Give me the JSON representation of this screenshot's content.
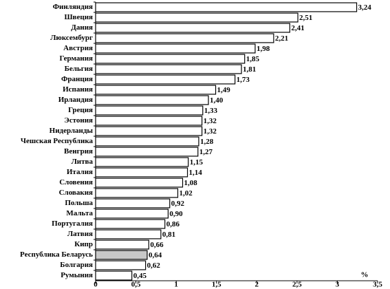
{
  "chart_data": {
    "type": "hbar",
    "categories": [
      "Финляндия",
      "Швеция",
      "Дания",
      "Люксембург",
      "Австрия",
      "Германия",
      "Бельгия",
      "Франция",
      "Испания",
      "Ирландия",
      "Греция",
      "Эстония",
      "Нидерланды",
      "Чешская Республика",
      "Венгрия",
      "Литва",
      "Италия",
      "Словения",
      "Словакия",
      "Польша",
      "Мальта",
      "Португалия",
      "Латвия",
      "Кипр",
      "Республика Беларусь",
      "Болгария",
      "Румыния"
    ],
    "values": [
      3.24,
      2.51,
      2.41,
      2.21,
      1.98,
      1.85,
      1.81,
      1.73,
      1.49,
      1.4,
      1.33,
      1.32,
      1.32,
      1.28,
      1.27,
      1.15,
      1.14,
      1.08,
      1.02,
      0.92,
      0.9,
      0.86,
      0.81,
      0.66,
      0.64,
      0.62,
      0.45
    ],
    "value_labels": [
      "3,24",
      "2,51",
      "2,41",
      "2,21",
      "1,98",
      "1,85",
      "1,81",
      "1,73",
      "1,49",
      "1,40",
      "1,33",
      "1,32",
      "1,32",
      "1,28",
      "1,27",
      "1,15",
      "1,14",
      "1,08",
      "1,02",
      "0,92",
      "0,90",
      "0,86",
      "0,81",
      "0,66",
      "0,64",
      "0,62",
      "0,45"
    ],
    "colors": [
      "#ffffff",
      "#ffffff",
      "#ffffff",
      "#ffffff",
      "#ffffff",
      "#ffffff",
      "#ffffff",
      "#ffffff",
      "#ffffff",
      "#ffffff",
      "#ffffff",
      "#ffffff",
      "#ffffff",
      "#ffffff",
      "#ffffff",
      "#ffffff",
      "#ffffff",
      "#ffffff",
      "#ffffff",
      "#ffffff",
      "#ffffff",
      "#ffffff",
      "#ffffff",
      "#ffffff",
      "#c8c8c8",
      "#ffffff",
      "#ffffff"
    ],
    "xlim": [
      0,
      3.5
    ],
    "xticks": [
      0,
      {
        "value": 0.5,
        "label": "0,5"
      },
      1,
      {
        "value": 1.5,
        "label": "1,5"
      },
      2,
      {
        "value": 2.5,
        "label": "2,5"
      },
      3,
      {
        "value": 3.5,
        "label": "3,5"
      }
    ],
    "axis_unit": "%"
  }
}
